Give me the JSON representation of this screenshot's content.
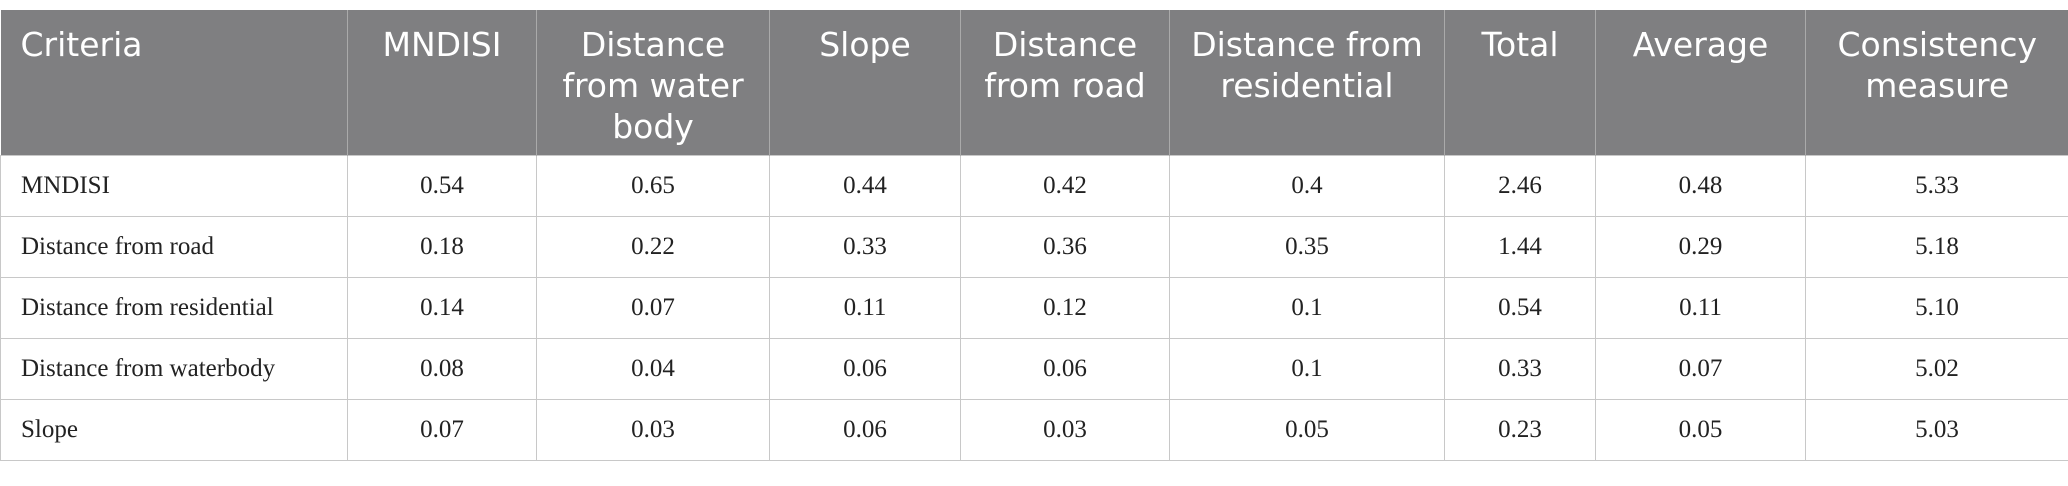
{
  "table": {
    "header": [
      "Criteria",
      "MNDISI",
      "Distance from water body",
      "Slope",
      "Distance from road",
      "Distance from residential",
      "Total",
      "Average",
      "Consistency measure"
    ],
    "rows": [
      [
        "MNDISI",
        "0.54",
        "0.65",
        "0.44",
        "0.42",
        "0.4",
        "2.46",
        "0.48",
        "5.33"
      ],
      [
        "Distance from road",
        "0.18",
        "0.22",
        "0.33",
        "0.36",
        "0.35",
        "1.44",
        "0.29",
        "5.18"
      ],
      [
        "Distance from residential",
        "0.14",
        "0.07",
        "0.11",
        "0.12",
        "0.1",
        "0.54",
        "0.11",
        "5.10"
      ],
      [
        "Distance from waterbody",
        "0.08",
        "0.04",
        "0.06",
        "0.06",
        "0.1",
        "0.33",
        "0.07",
        "5.02"
      ],
      [
        "Slope",
        "0.07",
        "0.03",
        "0.06",
        "0.03",
        "0.05",
        "0.23",
        "0.05",
        "5.03"
      ]
    ]
  }
}
